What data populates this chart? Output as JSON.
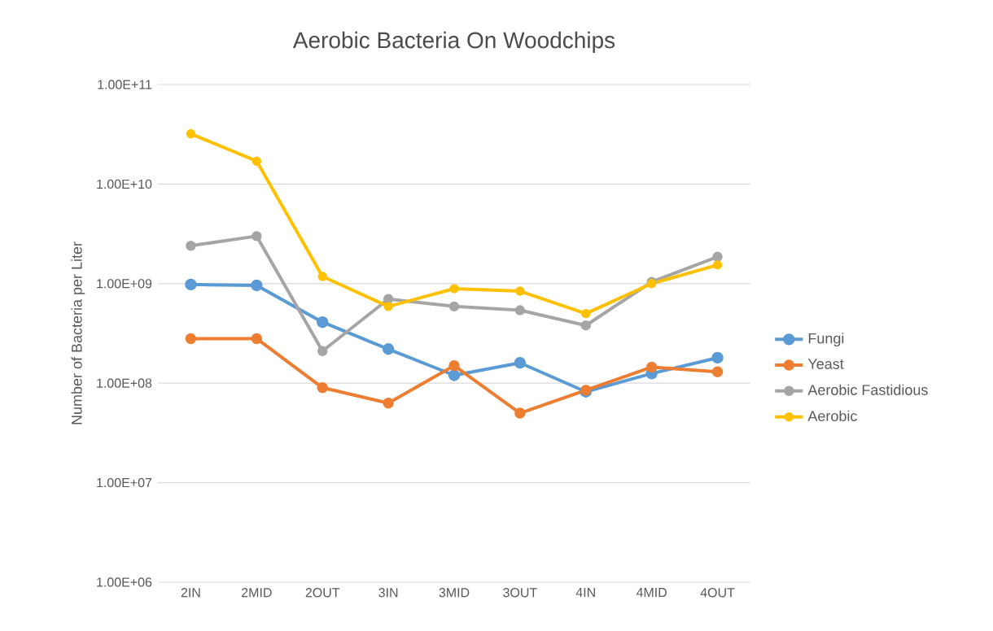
{
  "chart_data": {
    "type": "line",
    "title": "Aerobic Bacteria On Woodchips",
    "ylabel": "Number of Bacteria per Liter",
    "categories": [
      "2IN",
      "2MID",
      "2OUT",
      "3IN",
      "3MID",
      "3OUT",
      "4IN",
      "4MID",
      "4OUT"
    ],
    "series": [
      {
        "name": "Fungi",
        "color": "#5b9bd5",
        "values": [
          980000000,
          960000000,
          410000000,
          220000000,
          120000000,
          160000000,
          82000000,
          125000000,
          180000000
        ]
      },
      {
        "name": "Yeast",
        "color": "#ed7d31",
        "values": [
          280000000,
          280000000,
          90000000,
          63000000,
          150000000,
          50000000,
          85000000,
          145000000,
          130000000
        ]
      },
      {
        "name": "Aerobic Fastidious",
        "color": "#a5a5a5",
        "values": [
          2400000000,
          3000000000,
          210000000,
          700000000,
          590000000,
          540000000,
          380000000,
          1040000000,
          1860000000
        ]
      },
      {
        "name": "Aerobic",
        "color": "#ffc000",
        "values": [
          32000000000,
          17000000000,
          1180000000,
          590000000,
          890000000,
          840000000,
          500000000,
          1000000000,
          1540000000
        ]
      }
    ],
    "ylim": [
      1000000,
      100000000000
    ],
    "yticks": [
      {
        "value": 1000000,
        "label": "1.00E+06"
      },
      {
        "value": 10000000,
        "label": "1.00E+07"
      },
      {
        "value": 100000000,
        "label": "1.00E+08"
      },
      {
        "value": 1000000000,
        "label": "1.00E+09"
      },
      {
        "value": 10000000000,
        "label": "1.00E+10"
      },
      {
        "value": 100000000000,
        "label": "1.00E+11"
      }
    ],
    "log": "y",
    "grid": "y",
    "legend": "right",
    "marker": "circle"
  }
}
